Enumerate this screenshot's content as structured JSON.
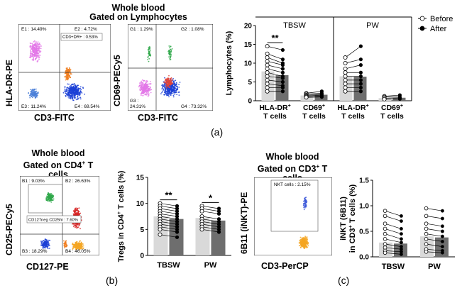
{
  "panel_a": {
    "title_line1": "Whole blood",
    "title_line2": "Gated on Lymphocytes",
    "flow1": {
      "ylabel": "HLA-DR-PE",
      "xlabel": "CD3-FITC",
      "gates": {
        "e1": "E1 : 14.49%",
        "e2": "E2 : 4.72%",
        "e3": "E3 : 11.24%",
        "e4": "E4 : 69.54%",
        "dr": "CD3+DR+ : 0.53%"
      }
    },
    "flow2": {
      "ylabel": "CD69-PECy5",
      "xlabel": "CD3-FITC",
      "gates": {
        "g1": "G1 : 1.29%",
        "g2": "G2 : 1.08%",
        "g3a": "G3 :",
        "g3b": "24.31%",
        "g4": "G4 : 73.32%"
      }
    },
    "label": "(a)"
  },
  "panel_b": {
    "title_line1": "Whole blood",
    "title_line2": "Gated on CD4",
    "title_sup": "+",
    "title_line2_end": " T cells",
    "flow": {
      "ylabel": "CD25-PECy5",
      "xlabel": "CD127-PE",
      "gates": {
        "b1": "B1 : 9.03%",
        "b2": "B2 : 26.63%",
        "b3": "B3 : 18.29%",
        "b4": "B4 : 46.05%",
        "tr": "CD127neg CD25hi : 7.60%"
      }
    },
    "label": "(b)"
  },
  "panel_c": {
    "title_line1": "Whole blood",
    "title_line2": "Gated on CD3",
    "title_sup": "+",
    "title_line2_end": " T cells",
    "flow": {
      "ylabel": "6B11 (iNKT)-PE",
      "xlabel": "CD3-PerCP",
      "gates": {
        "nkt": "NKT cells : 2.15%"
      }
    },
    "label": "(c)"
  },
  "colors": {
    "before_bar": "#d9d9d9",
    "after_bar": "#6e6e6e",
    "before_point": "#ffffff",
    "after_point": "#000000"
  },
  "chart_data": [
    {
      "type": "bar",
      "title": "",
      "ylabel": "Lymphocytes (%)",
      "ylim": [
        0,
        20
      ],
      "yticks": [
        0,
        5,
        10,
        15,
        20
      ],
      "groups": [
        "TBSW",
        "PW"
      ],
      "categories": [
        {
          "main": "HLA-DR",
          "sup": "+",
          "sub": "T cells"
        },
        {
          "main": "CD69",
          "sup": "+",
          "sub": "T cells"
        },
        {
          "main": "HLA-DR",
          "sup": "+",
          "sub": "T cells"
        },
        {
          "main": "CD69",
          "sup": "+",
          "sub": "T cells"
        }
      ],
      "legend": [
        "Before",
        "After"
      ],
      "significance": [
        {
          "category": 0,
          "text": "**"
        }
      ],
      "series": [
        {
          "name": "Before",
          "values": [
            7.8,
            1.4,
            6.5,
            0.7
          ]
        },
        {
          "name": "After",
          "values": [
            6.8,
            1.6,
            6.4,
            0.8
          ]
        }
      ],
      "points": [
        {
          "before": [
            14.5,
            12.5,
            11.5,
            10.5,
            9.5,
            8.5,
            7.5,
            6.5,
            5.5,
            4.5,
            3.5,
            2.5
          ],
          "after": [
            13.5,
            11.0,
            10.0,
            9.5,
            8.5,
            7.5,
            6.5,
            6.0,
            5.0,
            4.0,
            3.5,
            2.5
          ]
        },
        {
          "before": [
            2.0,
            1.8,
            1.5,
            1.3,
            1.1,
            0.9
          ],
          "after": [
            2.5,
            2.0,
            1.7,
            1.5,
            1.2,
            1.0
          ]
        },
        {
          "before": [
            11.5,
            10.0,
            8.5,
            7.5,
            6.5,
            5.5,
            4.5,
            3.5,
            2.5
          ],
          "after": [
            14.5,
            11.0,
            9.5,
            7.5,
            6.5,
            5.5,
            4.5,
            3.5,
            2.5
          ]
        },
        {
          "before": [
            1.2,
            1.0,
            0.7,
            0.4
          ],
          "after": [
            1.5,
            1.0,
            0.8,
            0.5
          ]
        }
      ]
    },
    {
      "type": "bar",
      "ylabel": "Tregs in CD4",
      "ylabel_sup": "+",
      "ylabel_end": " T cells (%)",
      "ylim": [
        0,
        15
      ],
      "yticks": [
        0,
        5,
        10,
        15
      ],
      "categories": [
        "TBSW",
        "PW"
      ],
      "significance": [
        {
          "category": 0,
          "text": "**"
        },
        {
          "category": 1,
          "text": "*"
        }
      ],
      "series": [
        {
          "name": "Before",
          "values": [
            7.5,
            7.2
          ]
        },
        {
          "name": "After",
          "values": [
            7.0,
            6.7
          ]
        }
      ],
      "points": [
        {
          "before": [
            10.0,
            9.5,
            9.0,
            8.5,
            8.0,
            7.5,
            7.0,
            6.5,
            6.0,
            5.5,
            5.0,
            4.0
          ],
          "after": [
            9.5,
            9.0,
            8.5,
            8.0,
            7.5,
            7.0,
            6.5,
            6.0,
            5.5,
            5.0,
            4.5,
            3.5
          ]
        },
        {
          "before": [
            9.5,
            9.0,
            8.5,
            7.5,
            7.0,
            6.5,
            6.0,
            5.5,
            5.0
          ],
          "after": [
            9.0,
            8.5,
            8.0,
            7.0,
            6.5,
            6.0,
            5.5,
            5.0,
            4.5
          ]
        }
      ]
    },
    {
      "type": "bar",
      "ylabel": "iNKT (6B11)",
      "ylabel2": "in CD3",
      "ylabel2_sup": "+",
      "ylabel2_end": " T cells (%)",
      "ylim": [
        0,
        1.5
      ],
      "yticks": [
        0.0,
        0.5,
        1.0,
        1.5
      ],
      "ytick_labels": [
        "0.0",
        "0.5",
        "1.0",
        "1.5"
      ],
      "categories": [
        "TBSW",
        "PW"
      ],
      "series": [
        {
          "name": "Before",
          "values": [
            0.28,
            0.4
          ]
        },
        {
          "name": "After",
          "values": [
            0.26,
            0.38
          ]
        }
      ],
      "points": [
        {
          "before": [
            0.9,
            0.8,
            0.65,
            0.55,
            0.45,
            0.35,
            0.25,
            0.18,
            0.12,
            0.08
          ],
          "after": [
            0.8,
            0.7,
            0.55,
            0.45,
            0.35,
            0.28,
            0.2,
            0.15,
            0.1,
            0.05
          ]
        },
        {
          "before": [
            0.95,
            0.8,
            0.65,
            0.55,
            0.45,
            0.35,
            0.25,
            0.15,
            0.1
          ],
          "after": [
            0.9,
            0.75,
            0.6,
            0.5,
            0.4,
            0.3,
            0.2,
            0.12,
            0.08
          ]
        }
      ]
    }
  ]
}
